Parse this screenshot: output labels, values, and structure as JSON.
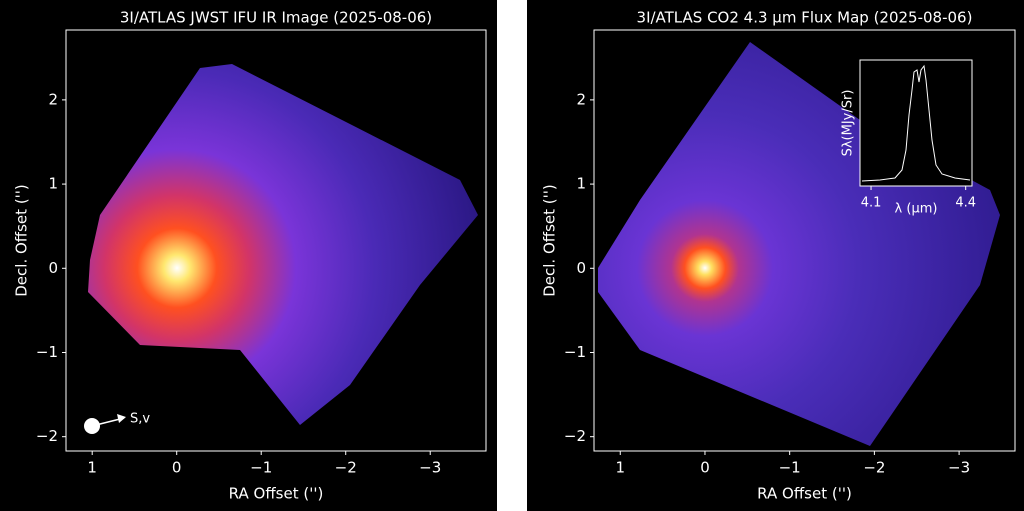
{
  "chart_data": [
    {
      "type": "image",
      "title": "3I/ATLAS JWST IFU IR Image (2025-08-06)",
      "xlabel": "RA Offset ('')",
      "ylabel": "Decl. Offset ('')",
      "xlim": [
        1.31,
        -3.66
      ],
      "ylim": [
        -2.17,
        2.83
      ],
      "xticks": [
        1,
        0,
        {
          "value": -1,
          "label": "−1"
        },
        {
          "value": -2,
          "label": "−2"
        },
        {
          "value": -3,
          "label": "−3"
        }
      ],
      "yticks": [
        {
          "value": -2,
          "label": "−2"
        },
        {
          "value": -1,
          "label": "−1"
        },
        0,
        1,
        2
      ],
      "annotation": "S,v"
    },
    {
      "type": "image",
      "title": "3I/ATLAS CO2 4.3 μm Flux Map (2025-08-06)",
      "xlabel": "RA Offset ('')",
      "ylabel": "Decl. Offset ('')",
      "xlim": [
        1.31,
        -3.66
      ],
      "ylim": [
        -2.17,
        2.83
      ],
      "xticks": [
        1,
        0,
        {
          "value": -1,
          "label": "−1"
        },
        {
          "value": -2,
          "label": "−2"
        },
        {
          "value": -3,
          "label": "−3"
        }
      ],
      "yticks": [
        {
          "value": -2,
          "label": "−2"
        },
        {
          "value": -1,
          "label": "−1"
        },
        0,
        1,
        2
      ]
    },
    {
      "type": "inset",
      "xlabel": "λ (μm)",
      "ylabel": "Sλ(MJy/Sr)",
      "xlim": [
        4.065,
        4.42
      ],
      "xticks": [
        4.1,
        4.4
      ]
    }
  ]
}
